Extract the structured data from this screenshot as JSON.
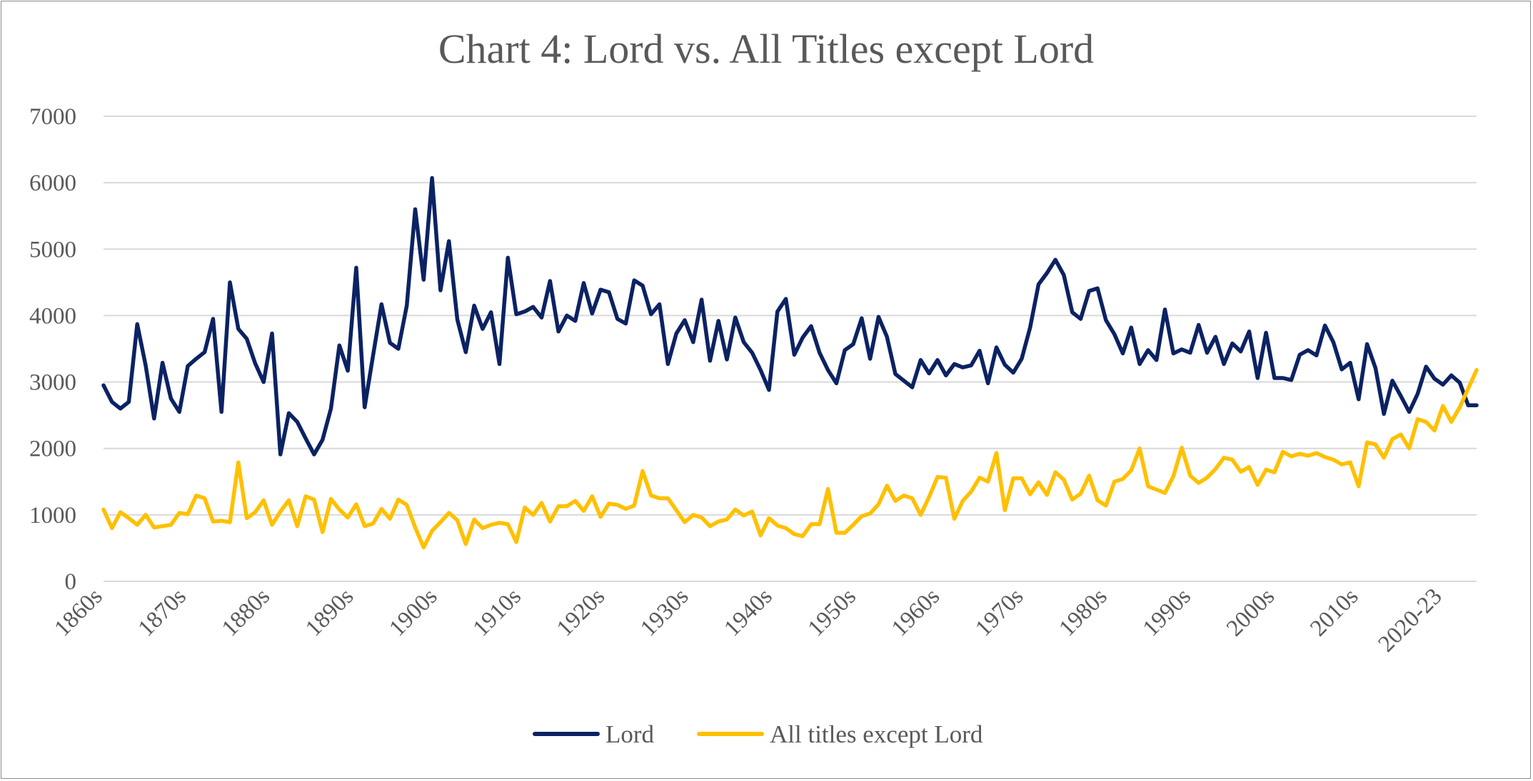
{
  "chart_data": {
    "type": "line",
    "title": "Chart 4: Lord vs. All Titles except Lord",
    "xlabel": "",
    "ylabel": "",
    "ylim": [
      0,
      7000
    ],
    "yticks": [
      0,
      1000,
      2000,
      3000,
      4000,
      5000,
      6000,
      7000
    ],
    "ytick_labels": [
      "0",
      "1000",
      "2000",
      "3000",
      "4000",
      "5000",
      "6000",
      "7000"
    ],
    "x_start": 1860,
    "x_end": 2024,
    "x_tick_labels": [
      {
        "label": "1860s",
        "x": 1860
      },
      {
        "label": "1870s",
        "x": 1870
      },
      {
        "label": "1880s",
        "x": 1880
      },
      {
        "label": "1890s",
        "x": 1890
      },
      {
        "label": "1900s",
        "x": 1900
      },
      {
        "label": "1910s",
        "x": 1910
      },
      {
        "label": "1920s",
        "x": 1920
      },
      {
        "label": "1930s",
        "x": 1930
      },
      {
        "label": "1940s",
        "x": 1940
      },
      {
        "label": "1950s",
        "x": 1950
      },
      {
        "label": "1960s",
        "x": 1960
      },
      {
        "label": "1970s",
        "x": 1970
      },
      {
        "label": "1980s",
        "x": 1980
      },
      {
        "label": "1990s",
        "x": 1990
      },
      {
        "label": "2000s",
        "x": 2000
      },
      {
        "label": "2010s",
        "x": 2010
      },
      {
        "label": "2020-23",
        "x": 2020
      }
    ],
    "grid": true,
    "legend_position": "bottom",
    "series": [
      {
        "name": "Lord",
        "color": "#0b2263",
        "values": [
          2950,
          2700,
          2600,
          2700,
          3870,
          3250,
          2450,
          3290,
          2750,
          2550,
          3240,
          3350,
          3450,
          3950,
          2550,
          4500,
          3800,
          3650,
          3280,
          3000,
          3730,
          1910,
          2530,
          2400,
          2150,
          1910,
          2130,
          2600,
          3550,
          3170,
          4720,
          2620,
          3400,
          4170,
          3590,
          3500,
          4150,
          5600,
          4540,
          6070,
          4380,
          5120,
          3940,
          3450,
          4150,
          3800,
          4050,
          3270,
          4870,
          4020,
          4060,
          4130,
          3970,
          4520,
          3760,
          4000,
          3920,
          4490,
          4030,
          4390,
          4350,
          3950,
          3880,
          4530,
          4450,
          4020,
          4170,
          3270,
          3730,
          3930,
          3600,
          4240,
          3320,
          3920,
          3340,
          3970,
          3600,
          3440,
          3180,
          2880,
          4060,
          4250,
          3410,
          3670,
          3840,
          3440,
          3180,
          2980,
          3480,
          3570,
          3960,
          3350,
          3980,
          3680,
          3120,
          3020,
          2920,
          3330,
          3130,
          3330,
          3100,
          3270,
          3220,
          3250,
          3470,
          2980,
          3520,
          3260,
          3140,
          3350,
          3820,
          4470,
          4640,
          4840,
          4610,
          4050,
          3950,
          4370,
          4410,
          3930,
          3720,
          3430,
          3820,
          3270,
          3480,
          3330,
          4090,
          3430,
          3490,
          3440,
          3860,
          3440,
          3680,
          3270,
          3580,
          3460,
          3760,
          3060,
          3740,
          3060,
          3060,
          3030,
          3410,
          3480,
          3400,
          3850,
          3600,
          3190,
          3290,
          2740,
          3570,
          3210,
          2520,
          3020,
          2790,
          2550,
          2820,
          3230,
          3050,
          2960,
          3100,
          2990,
          2650,
          2650
        ]
      },
      {
        "name": "All titles except Lord",
        "color": "#ffc000",
        "values": [
          1080,
          800,
          1040,
          950,
          850,
          1000,
          810,
          830,
          850,
          1030,
          1010,
          1290,
          1250,
          900,
          910,
          890,
          1790,
          950,
          1040,
          1220,
          850,
          1050,
          1220,
          830,
          1280,
          1230,
          740,
          1240,
          1080,
          960,
          1160,
          830,
          870,
          1090,
          940,
          1230,
          1150,
          810,
          510,
          760,
          890,
          1030,
          920,
          560,
          930,
          800,
          850,
          880,
          860,
          590,
          1110,
          1000,
          1180,
          900,
          1130,
          1130,
          1210,
          1060,
          1280,
          970,
          1170,
          1150,
          1090,
          1140,
          1660,
          1290,
          1250,
          1250,
          1070,
          890,
          1000,
          960,
          830,
          900,
          930,
          1080,
          990,
          1050,
          690,
          950,
          840,
          800,
          710,
          680,
          860,
          860,
          1390,
          730,
          730,
          850,
          980,
          1020,
          1160,
          1440,
          1210,
          1290,
          1250,
          1000,
          1270,
          1570,
          1560,
          940,
          1210,
          1350,
          1560,
          1500,
          1930,
          1070,
          1550,
          1550,
          1310,
          1490,
          1300,
          1640,
          1530,
          1230,
          1320,
          1590,
          1220,
          1140,
          1500,
          1540,
          1670,
          2000,
          1430,
          1380,
          1330,
          1580,
          2010,
          1590,
          1480,
          1560,
          1690,
          1860,
          1830,
          1650,
          1720,
          1450,
          1680,
          1640,
          1950,
          1880,
          1920,
          1890,
          1930,
          1870,
          1830,
          1760,
          1790,
          1430,
          2090,
          2060,
          1860,
          2140,
          2210,
          2000,
          2440,
          2400,
          2270,
          2640,
          2400,
          2620,
          2900,
          3180
        ]
      }
    ]
  }
}
